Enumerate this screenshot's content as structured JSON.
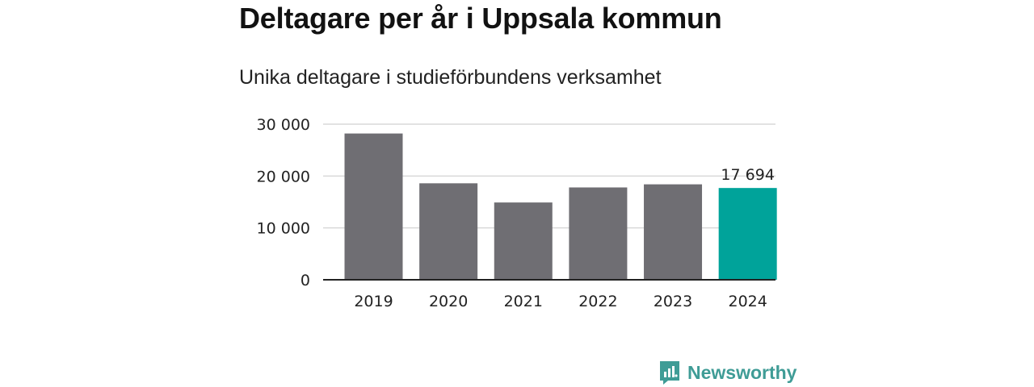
{
  "title": "Deltagare per år i Uppsala kommun",
  "subtitle": "Unika deltagare i studieförbundens verksamhet",
  "brand": {
    "name": "Newsworthy",
    "icon": "newsworthy-logo-icon"
  },
  "colors": {
    "bar": "#6f6e73",
    "highlight": "#00a39a",
    "grid": "#d9d9d9",
    "axis": "#222222",
    "text": "#222222"
  },
  "chart_data": {
    "type": "bar",
    "categories": [
      "2019",
      "2020",
      "2021",
      "2022",
      "2023",
      "2024"
    ],
    "values": [
      28200,
      18600,
      14900,
      17800,
      18400,
      17694
    ],
    "highlight_index": 5,
    "data_labels": [
      {
        "index": 5,
        "text": "17 694"
      }
    ],
    "ylim": [
      0,
      30000
    ],
    "yticks": [
      0,
      10000,
      20000,
      30000
    ],
    "ytick_labels": [
      "0",
      "10 000",
      "20 000",
      "30 000"
    ],
    "grid": true,
    "xlabel": "",
    "ylabel": ""
  }
}
